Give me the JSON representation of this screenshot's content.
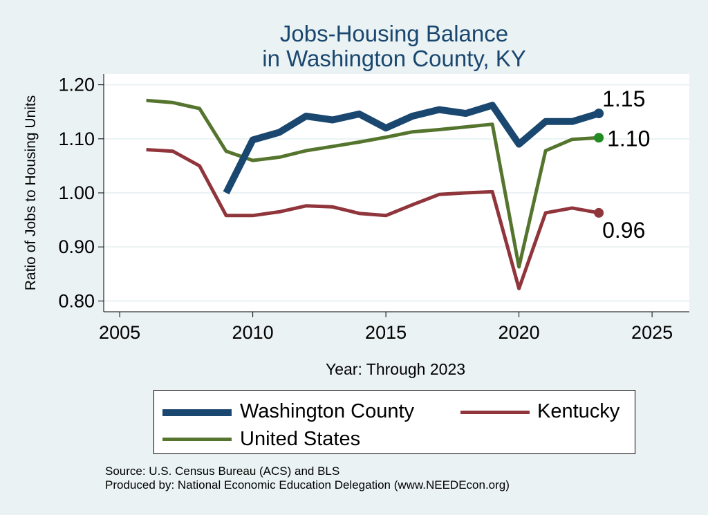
{
  "chart_data": {
    "type": "line",
    "title": [
      "Jobs-Housing Balance",
      "in Washington County, KY"
    ],
    "xlabel": "Year: Through 2023",
    "ylabel": "Ratio of Jobs to Housing Units",
    "xlim": [
      2004.4,
      2026.4
    ],
    "ylim": [
      0.78,
      1.22
    ],
    "xticks": [
      2005,
      2010,
      2015,
      2020,
      2025
    ],
    "yticks": [
      0.8,
      0.9,
      1.0,
      1.1,
      1.2
    ],
    "ytick_labels": [
      "0.80",
      "0.90",
      "1.00",
      "1.10",
      "1.20"
    ],
    "grid": true,
    "series": [
      {
        "name": "Washington County",
        "color": "#1a476f",
        "x": [
          2009,
          2010,
          2011,
          2012,
          2013,
          2014,
          2015,
          2016,
          2017,
          2018,
          2019,
          2020,
          2021,
          2022,
          2023
        ],
        "values": [
          1.0,
          1.098,
          1.112,
          1.142,
          1.135,
          1.146,
          1.12,
          1.142,
          1.154,
          1.147,
          1.162,
          1.09,
          1.132,
          1.132,
          1.147
        ],
        "end_label": "1.15"
      },
      {
        "name": "Kentucky",
        "color": "#90353b",
        "x": [
          2006,
          2007,
          2008,
          2009,
          2010,
          2011,
          2012,
          2013,
          2014,
          2015,
          2016,
          2017,
          2018,
          2019,
          2020,
          2021,
          2022,
          2023
        ],
        "values": [
          1.08,
          1.077,
          1.05,
          0.958,
          0.958,
          0.965,
          0.976,
          0.974,
          0.962,
          0.958,
          0.978,
          0.997,
          1.0,
          1.002,
          0.823,
          0.963,
          0.972,
          0.963
        ],
        "end_label": "0.96"
      },
      {
        "name": "United States",
        "color": "#55752f",
        "marker_color": "#228b22",
        "x": [
          2006,
          2007,
          2008,
          2009,
          2010,
          2011,
          2012,
          2013,
          2014,
          2015,
          2016,
          2017,
          2018,
          2019,
          2020,
          2021,
          2022,
          2023
        ],
        "values": [
          1.171,
          1.167,
          1.156,
          1.077,
          1.06,
          1.066,
          1.078,
          1.086,
          1.094,
          1.103,
          1.113,
          1.117,
          1.122,
          1.127,
          0.863,
          1.078,
          1.099,
          1.102
        ],
        "end_label": "1.10"
      }
    ],
    "legend": [
      {
        "name": "Washington County",
        "color": "#1a476f"
      },
      {
        "name": "Kentucky",
        "color": "#90353b"
      },
      {
        "name": "United States",
        "color": "#55752f"
      }
    ]
  },
  "source_line": "Source: U.S. Census Bureau (ACS) and BLS",
  "producer_line": "Produced by: National Economic Education Delegation (www.NEEDEcon.org)"
}
